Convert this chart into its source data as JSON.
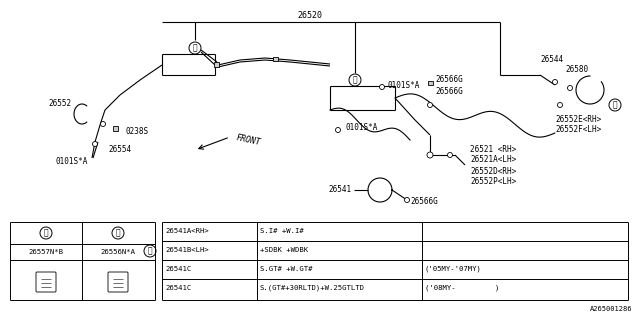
{
  "bg_color": "#ffffff",
  "line_color": "#000000",
  "part_number_26520": "26520",
  "part_number_26552": "26552",
  "part_number_26554": "26554",
  "part_number_26541": "26541",
  "part_number_26566G_1": "26566G",
  "part_number_26566G_2": "26566G",
  "part_number_26566G_3": "26566G",
  "part_number_26521": "26521 <RH>",
  "part_number_26521A": "26521A<LH>",
  "part_number_26552D": "26552D<RH>",
  "part_number_26552P": "26552P<LH>",
  "part_number_26544": "26544",
  "part_number_26580": "26580",
  "part_number_26552E": "26552E<RH>",
  "part_number_26552F": "26552F<LH>",
  "part_number_0238S": "0238S",
  "part_number_0101SA_left": "0101S*A",
  "part_number_0101SA_right1": "0101S*A",
  "part_number_0101SA_right2": "0101S*A",
  "part_number_26557NB": "26557N*B",
  "part_number_26556NA": "26556N*A",
  "table1_col1_header": "①",
  "table1_col2_header": "②",
  "table2_marker": "③",
  "table2_col1": [
    "26541A<RH>",
    "26541B<LH>",
    "26541C",
    "26541C"
  ],
  "table2_col2": [
    "S.I# +W.I#",
    "+SDBK +WDBK",
    "S.GT# +W.GT#",
    "S.(GT#+30RLTD)+W.25GTLTD"
  ],
  "table2_col3": [
    "",
    "",
    "('05MY-'07MY)",
    "('08MY-         )"
  ],
  "front_label": "FRONT",
  "doc_number": "A265001286",
  "circle1": "①",
  "circle2": "②",
  "circle3": "③"
}
